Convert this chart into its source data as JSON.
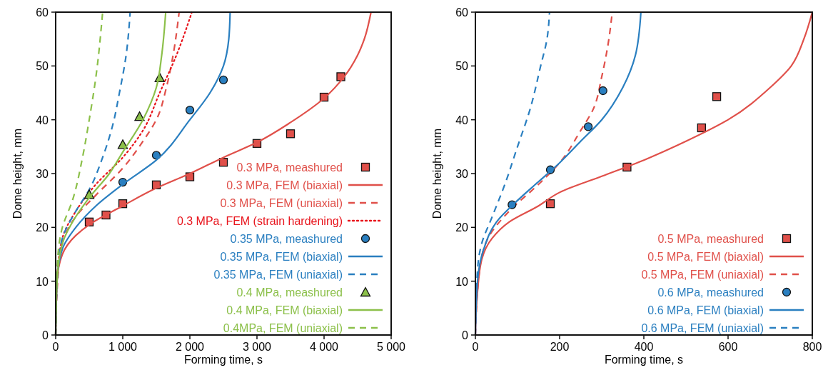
{
  "chart_data": [
    {
      "type": "line",
      "xlabel": "Forming time, s",
      "ylabel": "Dome height, mm",
      "xlim": [
        0,
        5000
      ],
      "ylim": [
        0,
        60
      ],
      "xticks": [
        0,
        {
          "value": 1000,
          "label": "1 000"
        },
        {
          "value": 2000,
          "label": "2 000"
        },
        {
          "value": 3000,
          "label": "3 000"
        },
        {
          "value": 4000,
          "label": "4 000"
        },
        {
          "value": 5000,
          "label": "5 000"
        }
      ],
      "yticks": [
        0,
        10,
        20,
        30,
        40,
        50,
        60
      ],
      "legend": "bottom right",
      "grid": false,
      "series": [
        {
          "name": "0.3 MPa, meashured",
          "type": "scatter",
          "marker": "square",
          "color": "#e0504a",
          "x": [
            500,
            750,
            1000,
            1500,
            2000,
            2500,
            3000,
            3500,
            4000,
            4250
          ],
          "values": [
            21,
            22.3,
            24.4,
            27.9,
            29.4,
            32.1,
            35.6,
            37.4,
            44.2,
            48
          ]
        },
        {
          "name": "0.3 MPa, FEM (biaxial)",
          "line_style": "solid",
          "color": "#e0504a",
          "x": [
            0,
            20,
            100,
            300,
            500,
            1000,
            1500,
            2000,
            2500,
            3000,
            3500,
            4000,
            4300,
            4500,
            4600,
            4700
          ],
          "values": [
            0,
            10,
            15,
            18.5,
            20.5,
            24,
            27.3,
            30,
            33,
            35.8,
            39.5,
            44,
            48,
            52,
            55,
            60
          ]
        },
        {
          "name": "0.3 MPa, FEM (uniaxial)",
          "line_style": "dashed",
          "color": "#e0504a",
          "x": [
            0,
            30,
            100,
            300,
            600,
            1000,
            1300,
            1500,
            1650,
            1750,
            1840
          ],
          "values": [
            0,
            10,
            17,
            22,
            26,
            31,
            36,
            40,
            46,
            52,
            60
          ]
        },
        {
          "name": "0.3 MPa, FEM (strain hardening)",
          "line_style": "dotted",
          "color": "#e8141c",
          "x": [
            0,
            20,
            100,
            300,
            600,
            1000,
            1300,
            1550,
            1800,
            2030
          ],
          "values": [
            0,
            10,
            18,
            23,
            28,
            33,
            38,
            45,
            52,
            60
          ]
        },
        {
          "name": "0.35 MPa, meashured",
          "type": "scatter",
          "marker": "circle",
          "color": "#2a7fc0",
          "x": [
            1000,
            1500,
            2000,
            2500
          ],
          "values": [
            28.4,
            33.4,
            41.8,
            47.4
          ]
        },
        {
          "name": "0.35 MPa, FEM (biaxial)",
          "line_style": "solid",
          "color": "#2a7fc0",
          "x": [
            0,
            20,
            100,
            300,
            600,
            1000,
            1500,
            2000,
            2300,
            2500,
            2580,
            2600
          ],
          "values": [
            0,
            10,
            16,
            20,
            24,
            28,
            32.5,
            40,
            45,
            50,
            55,
            60
          ]
        },
        {
          "name": "0.35 MPa, FEM (uniaxial)",
          "line_style": "dashed",
          "color": "#2a7fc0",
          "x": [
            0,
            30,
            100,
            300,
            500,
            700,
            850,
            950,
            1050,
            1110
          ],
          "values": [
            0,
            12,
            18,
            23,
            27,
            33,
            39,
            45,
            52,
            60
          ]
        },
        {
          "name": "0.4 MPa, meashured",
          "type": "scatter",
          "marker": "triangle",
          "color": "#8cc04a",
          "x": [
            500,
            1000,
            1250,
            1550
          ],
          "values": [
            26.1,
            35.4,
            40.6,
            47.8
          ]
        },
        {
          "name": "0.4 MPa, FEM (biaxial)",
          "line_style": "solid",
          "color": "#8cc04a",
          "x": [
            0,
            20,
            100,
            300,
            500,
            800,
            1000,
            1300,
            1500,
            1580,
            1640
          ],
          "values": [
            0,
            10,
            17,
            22,
            25.5,
            30,
            34,
            40,
            46,
            52,
            60
          ]
        },
        {
          "name": "0.4MPa, FEM (uniaxial)",
          "line_style": "dashed",
          "color": "#8cc04a",
          "x": [
            0,
            30,
            100,
            250,
            400,
            500,
            600,
            700
          ],
          "values": [
            0,
            14,
            20,
            25,
            33,
            40,
            48,
            60
          ]
        }
      ]
    },
    {
      "type": "line",
      "xlabel": "Forming time, s",
      "ylabel": "Dome height, mm",
      "xlim": [
        0,
        800
      ],
      "ylim": [
        0,
        60
      ],
      "xticks": [
        0,
        200,
        400,
        600,
        800
      ],
      "yticks": [
        0,
        10,
        20,
        30,
        40,
        50,
        60
      ],
      "legend": "bottom right",
      "grid": false,
      "series": [
        {
          "name": "0.5 MPa, meashured",
          "type": "scatter",
          "marker": "square",
          "color": "#e0504a",
          "x": [
            178,
            360,
            537,
            573
          ],
          "values": [
            24.4,
            31.2,
            38.5,
            44.3
          ]
        },
        {
          "name": "0.5 MPa, FEM (biaxial)",
          "line_style": "solid",
          "color": "#e0504a",
          "x": [
            0,
            5,
            15,
            40,
            80,
            150,
            200,
            300,
            400,
            500,
            600,
            700,
            750,
            780,
            800
          ],
          "values": [
            0,
            8,
            14,
            18,
            21,
            24,
            26.5,
            29.5,
            32.5,
            36,
            40,
            46,
            50,
            55,
            60
          ]
        },
        {
          "name": "0.5 MPa, FEM (uniaxial)",
          "line_style": "dashed",
          "color": "#e0504a",
          "x": [
            0,
            10,
            30,
            80,
            150,
            200,
            250,
            280,
            300,
            315,
            325
          ],
          "values": [
            0,
            12,
            18,
            23,
            28,
            32,
            38,
            42,
            48,
            54,
            60
          ]
        },
        {
          "name": "0.6 MPa, meashured",
          "type": "scatter",
          "marker": "circle",
          "color": "#2a7fc0",
          "x": [
            87,
            178,
            268,
            303
          ],
          "values": [
            24.2,
            30.7,
            38.7,
            45.4
          ]
        },
        {
          "name": "0.6 MPa, FEM (biaxial)",
          "line_style": "solid",
          "color": "#2a7fc0",
          "x": [
            0,
            5,
            20,
            50,
            100,
            150,
            200,
            250,
            300,
            350,
            380,
            393
          ],
          "values": [
            0,
            10,
            16,
            21,
            25,
            28.5,
            32,
            36,
            40,
            46,
            52,
            60
          ]
        },
        {
          "name": "0.6 MPa, FEM (uniaxial)",
          "line_style": "dashed",
          "color": "#2a7fc0",
          "x": [
            0,
            5,
            15,
            40,
            70,
            100,
            130,
            155,
            170,
            176
          ],
          "values": [
            0,
            12,
            17,
            22,
            28,
            35,
            42,
            50,
            55,
            60
          ]
        }
      ]
    }
  ]
}
